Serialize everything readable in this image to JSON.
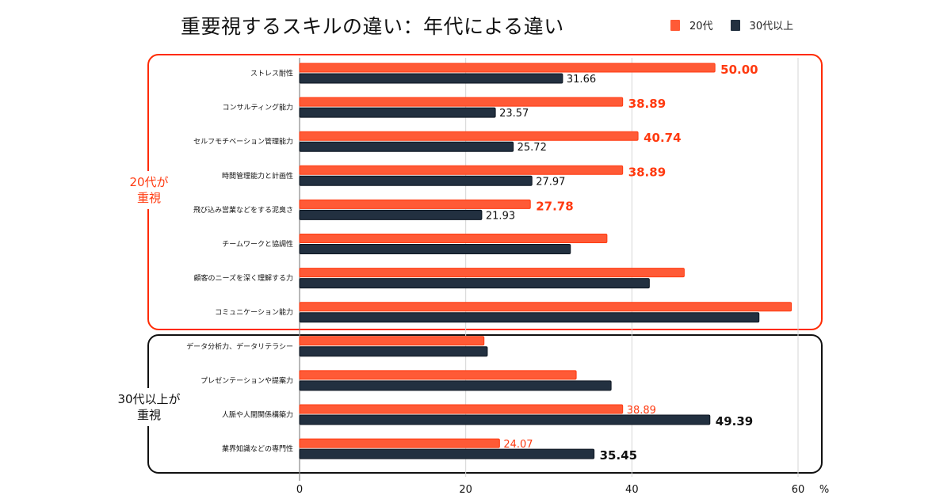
{
  "chart_data": {
    "type": "bar",
    "orientation": "horizontal",
    "title": "重要視するスキルの違い：年代による違い",
    "xlabel": "",
    "xunit": "%",
    "ylabel": "",
    "xlim": [
      0,
      60
    ],
    "xticks": [
      0,
      20,
      40,
      60
    ],
    "grid": true,
    "legend_position": "top-right",
    "categories": [
      "ストレス耐性",
      "コンサルティング能力",
      "セルフモチベーション管理能力",
      "時間管理能力と計画性",
      "飛び込み営業などをする泥臭さ",
      "チームワークと協調性",
      "顧客のニーズを深く理解する力",
      "コミュニケーション能力",
      "データ分析力、データリテラシー",
      "プレゼンテーションや提案力",
      "人脈や人間関係構築力",
      "業界知識などの専門性"
    ],
    "series": [
      {
        "name": "20代",
        "color": "#ff5a36",
        "values": [
          50.0,
          38.89,
          40.74,
          38.89,
          27.78,
          37.0,
          46.3,
          59.2,
          22.2,
          33.3,
          38.89,
          24.07
        ],
        "labels": [
          "50.00",
          "38.89",
          "40.74",
          "38.89",
          "27.78",
          "",
          "",
          "",
          "",
          "",
          "38.89",
          "24.07"
        ]
      },
      {
        "name": "30代以上",
        "color": "#223040",
        "values": [
          31.66,
          23.57,
          25.72,
          27.97,
          21.93,
          32.6,
          42.1,
          55.3,
          22.6,
          37.5,
          49.39,
          35.45
        ],
        "labels": [
          "31.66",
          "23.57",
          "25.72",
          "27.97",
          "21.93",
          "",
          "",
          "",
          "",
          "",
          "49.39",
          "35.45"
        ]
      }
    ],
    "label_emphasis": {
      "20代": [
        "bold",
        "bold",
        "bold",
        "bold",
        "bold",
        "",
        "",
        "",
        "",
        "",
        "normal",
        "normal"
      ],
      "30代以上": [
        "normal",
        "normal",
        "normal",
        "normal",
        "normal",
        "",
        "",
        "",
        "",
        "",
        "bold",
        "bold"
      ]
    },
    "groups": [
      {
        "label_line1": "20代が",
        "label_line2": "重視",
        "color": "#ff3a10",
        "range": [
          0,
          7
        ]
      },
      {
        "label_line1": "30代以上が",
        "label_line2": "重視",
        "color": "#111111",
        "range": [
          8,
          11
        ]
      }
    ]
  },
  "legend": [
    {
      "label": "20代",
      "color": "#ff5a36"
    },
    {
      "label": "30代以上",
      "color": "#223040"
    }
  ]
}
